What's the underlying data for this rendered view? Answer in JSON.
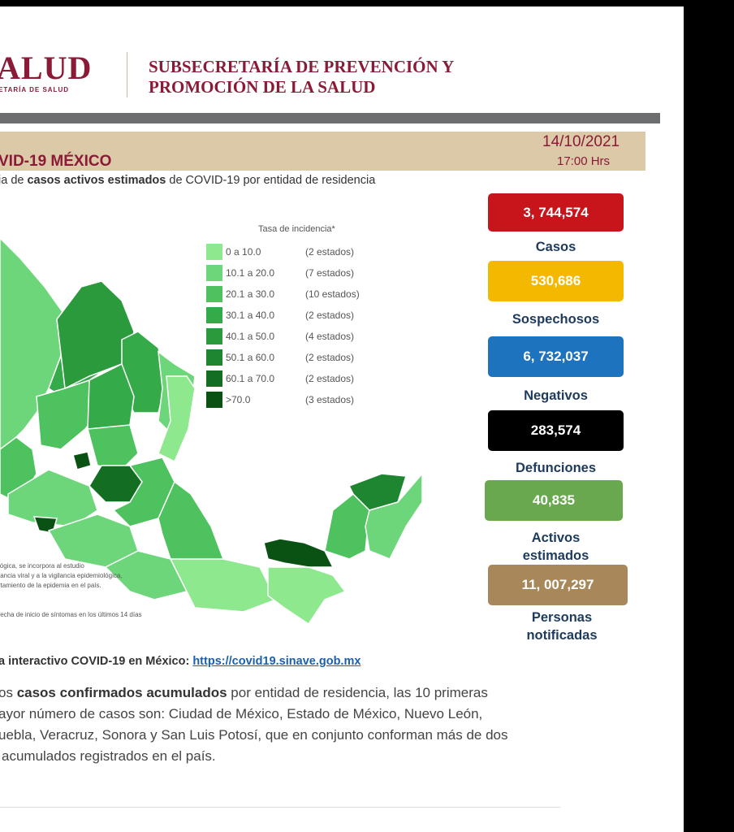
{
  "header": {
    "logo_text": "ALUD",
    "logo_subtext": "ETARÍA DE SALUD",
    "subsecretaria_line1": "SUBSECRETARÍA DE PREVENCIÓN Y",
    "subsecretaria_line2": "PROMOCIÓN DE LA SALUD"
  },
  "report": {
    "title": "VID-19 MÉXICO",
    "date": "14/10/2021",
    "time": "17:00 Hrs",
    "subtitle_prefix": "ia de ",
    "subtitle_bold": "casos activos estimados",
    "subtitle_suffix": " de COVID-19 por entidad de residencia"
  },
  "legend": {
    "title": "Tasa de incidencia*",
    "items": [
      {
        "range": "0   a  10.0",
        "count": "(2 estados)",
        "color": "#8ee88e"
      },
      {
        "range": "10.1 a  20.0",
        "count": "(7 estados)",
        "color": "#6ed67a"
      },
      {
        "range": "20.1 a  30.0",
        "count": "(10 estados)",
        "color": "#4dc25e"
      },
      {
        "range": "30.1 a  40.0",
        "count": "(2 estados)",
        "color": "#35aa48"
      },
      {
        "range": "40.1 a  50.0",
        "count": "(4 estados)",
        "color": "#2a9a3c"
      },
      {
        "range": "50.1 a  60.0",
        "count": "(2 estados)",
        "color": "#1e8530"
      },
      {
        "range": "60.1 a  70.0",
        "count": "(2 estados)",
        "color": "#136e22"
      },
      {
        "range": ">70.0",
        "count": "(3 estados)",
        "color": "#0a5214"
      }
    ]
  },
  "map_notes": {
    "note1": "lógica, se incorpora al estudio",
    "note2": "tancia viral y a la vigilancia epidemiológica,",
    "note3": "rtamiento de la epidemia en el país.",
    "note4": "fecha de inicio de síntomas en los últimos 14 días"
  },
  "stats": [
    {
      "value": "3, 744,574",
      "label": "Casos",
      "color": "#c8141b"
    },
    {
      "value": "530,686",
      "label": "Sospechosos",
      "color": "#f5b800"
    },
    {
      "value": "6, 732,037",
      "label": "Negativos",
      "color": "#1e73be"
    },
    {
      "value": "283,574",
      "label": "Defunciones",
      "color": "#000000"
    },
    {
      "value": "40,835",
      "label_line1": "Activos",
      "label_line2": "estimados",
      "color": "#6aa84f"
    },
    {
      "value": "11, 007,297",
      "label_line1": "Personas",
      "label_line2": "notificadas",
      "color": "#a8875a"
    }
  ],
  "footer": {
    "link_prefix": "a interactivo COVID-19 en México: ",
    "link_url": "https://covid19.sinave.gob.mx",
    "para_l1_a": "os ",
    "para_l1_bold": "casos confirmados acumulados",
    "para_l1_b": " por entidad de residencia, las 10 primeras",
    "para_l2": "ayor número de casos son: Ciudad de México, Estado de México, Nuevo León,",
    "para_l3": "uebla, Veracruz, Sonora y San Luis Potosí, que en conjunto conforman más de dos",
    "para_l4": "acumulados registrados en el país."
  }
}
